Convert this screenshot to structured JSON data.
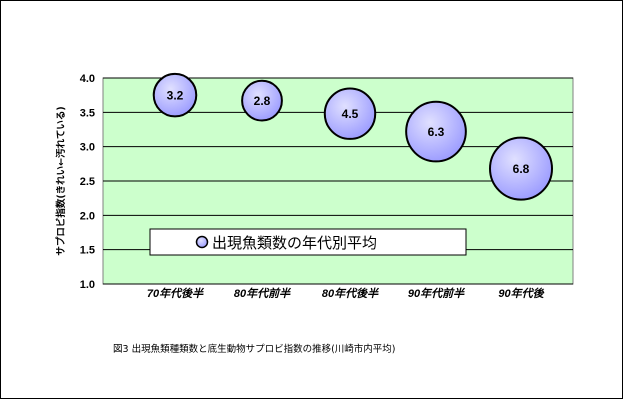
{
  "caption": "図3 出現魚類種類数と底生動物サプロビ指数の推移(川崎市内平均)",
  "colors": {
    "plot_bg": "#ccffcc",
    "bubble_fill": "#9999ff",
    "bubble_highlight": "#e0e0ff",
    "bubble_stroke": "#000000",
    "frame": "#000000"
  },
  "chart_data": {
    "type": "bubble",
    "categories": [
      "70年代後半",
      "80年代前半",
      "80年代後半",
      "90年代前半",
      "90年代後"
    ],
    "y_values": [
      3.75,
      3.67,
      3.48,
      3.22,
      2.68
    ],
    "sizes": [
      3.2,
      2.8,
      4.5,
      6.3,
      6.8
    ],
    "size_labels": [
      "3.2",
      "2.8",
      "4.5",
      "6.3",
      "6.8"
    ],
    "ylabel": "サプロビ指数(きれい←汚れている)",
    "ylim": [
      1.0,
      4.0
    ],
    "yticks": [
      "1.0",
      "1.5",
      "2.0",
      "2.5",
      "3.0",
      "3.5",
      "4.0"
    ],
    "legend": "出現魚類数の年代別平均",
    "legend_position": "bottom-center",
    "grid": true
  }
}
